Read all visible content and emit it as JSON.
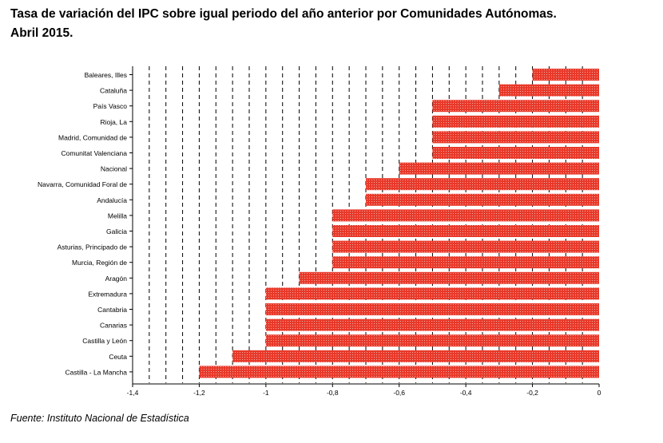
{
  "page": {
    "title_line1": "Tasa de variación del IPC sobre igual periodo del año anterior por Comunidades Autónomas.",
    "title_line2": "Abril 2015.",
    "source": "Fuente: Instituto Nacional de Estadística"
  },
  "chart_data": {
    "type": "bar",
    "orientation": "horizontal",
    "categories": [
      "Baleares, Illes",
      "Cataluña",
      "País Vasco",
      "Rioja, La",
      "Madrid, Comunidad de",
      "Comunitat Valenciana",
      "Nacional",
      "Navarra, Comunidad Foral de",
      "Andalucía",
      "Melilla",
      "Galicia",
      "Asturias, Principado de",
      "Murcia, Región de",
      "Aragón",
      "Extremadura",
      "Cantabria",
      "Canarias",
      "Castilla y León",
      "Ceuta",
      "Castilla - La Mancha"
    ],
    "values": [
      -0.2,
      -0.3,
      -0.5,
      -0.5,
      -0.5,
      -0.5,
      -0.6,
      -0.7,
      -0.7,
      -0.8,
      -0.8,
      -0.8,
      -0.8,
      -0.9,
      -1.0,
      -1.0,
      -1.0,
      -1.0,
      -1.1,
      -1.2
    ],
    "xlim": [
      -1.4,
      0
    ],
    "ticks": [
      -1.4,
      -1.2,
      -1,
      -0.8,
      -0.6,
      -0.4,
      -0.2,
      0
    ],
    "tick_labels": [
      "-1,4",
      "-1,2",
      "-1",
      "-0,8",
      "-0,6",
      "-0,4",
      "-0,2",
      "0"
    ],
    "grid": "vertical dashed",
    "bar_color": "#e8392a",
    "legend": "none"
  }
}
